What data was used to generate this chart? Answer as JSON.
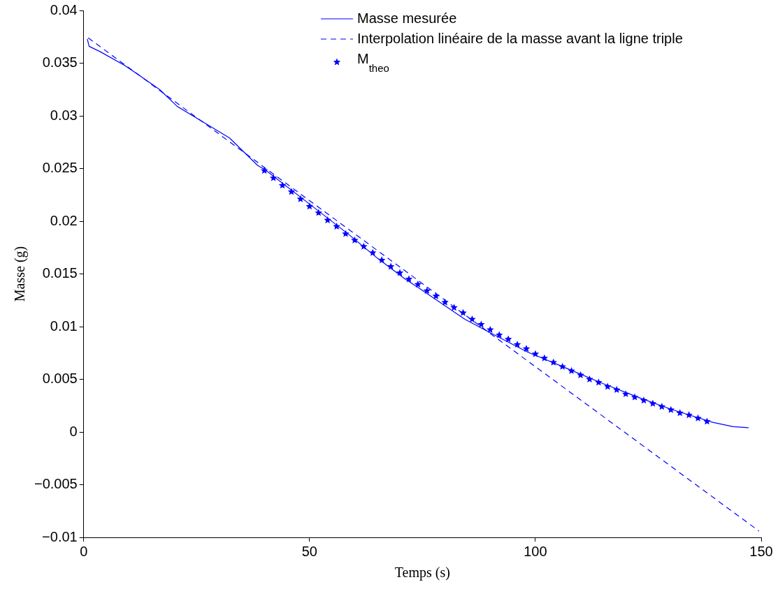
{
  "chart_data": {
    "type": "line",
    "xlabel": "Temps (s)",
    "ylabel": "Masse (g)",
    "xlim": [
      0,
      150
    ],
    "xticks": [
      0,
      50,
      100,
      150
    ],
    "ylim": [
      -0.01,
      0.04
    ],
    "yticks": [
      {
        "value": -0.01,
        "label": "−0.01"
      },
      {
        "value": -0.005,
        "label": "−0.005"
      },
      0,
      0.005,
      0.01,
      0.015,
      0.02,
      0.025,
      0.03,
      0.035,
      0.04
    ],
    "grid": false,
    "legend": "top",
    "series": [
      {
        "name": "Masse mesurée",
        "line_style": "solid",
        "color": "#0000ff",
        "x": [
          0.8,
          1.2,
          3.6,
          9,
          12.1,
          16.8,
          20.7,
          26.1,
          32.3,
          38.5,
          40.1,
          51,
          58.8,
          65,
          71.2,
          74.1,
          84.4,
          90.5,
          98.2,
          106.6,
          114.9,
          123.3,
          130.4,
          139.4,
          143.8,
          147.2
        ],
        "values": [
          0.0373,
          0.0366,
          0.0361,
          0.0348,
          0.0339,
          0.0325,
          0.0309,
          0.0295,
          0.0279,
          0.0253,
          0.0249,
          0.0213,
          0.0187,
          0.0165,
          0.0145,
          0.0137,
          0.0107,
          0.0093,
          0.0076,
          0.0061,
          0.0046,
          0.0032,
          0.0021,
          0.0009,
          0.0005,
          0.0004
        ]
      },
      {
        "name": "Interpolation linéaire de la masse avant la ligne triple",
        "line_style": "dashed",
        "color": "#0000ff",
        "x": [
          1,
          149.5
        ],
        "values": [
          0.0374,
          -0.0094
        ]
      },
      {
        "name": "M$_{theo}$",
        "type": "scatter",
        "marker": "star",
        "color": "#0000ff",
        "x": [
          40,
          42,
          44,
          46,
          48,
          50,
          52,
          54,
          56,
          58,
          60,
          62,
          64,
          66,
          68,
          70,
          72,
          74,
          76,
          78,
          80,
          82,
          84,
          86,
          88,
          90,
          92,
          94,
          96,
          98,
          100,
          102,
          104,
          106,
          108,
          110,
          112,
          114,
          116,
          118,
          120,
          122,
          124,
          126,
          128,
          130,
          132,
          134,
          136,
          138
        ],
        "values": [
          0.0248,
          0.0241,
          0.0234,
          0.0228,
          0.0221,
          0.0214,
          0.0208,
          0.0201,
          0.0195,
          0.0188,
          0.0182,
          0.0176,
          0.017,
          0.0163,
          0.0157,
          0.0151,
          0.0145,
          0.014,
          0.0134,
          0.0129,
          0.0123,
          0.0118,
          0.0113,
          0.0107,
          0.0102,
          0.0097,
          0.0092,
          0.0088,
          0.0083,
          0.0079,
          0.0074,
          0.007,
          0.0066,
          0.0062,
          0.0058,
          0.0054,
          0.005,
          0.0047,
          0.0043,
          0.004,
          0.0036,
          0.0033,
          0.003,
          0.0027,
          0.0024,
          0.0021,
          0.0018,
          0.0016,
          0.0013,
          0.001
        ]
      }
    ]
  }
}
